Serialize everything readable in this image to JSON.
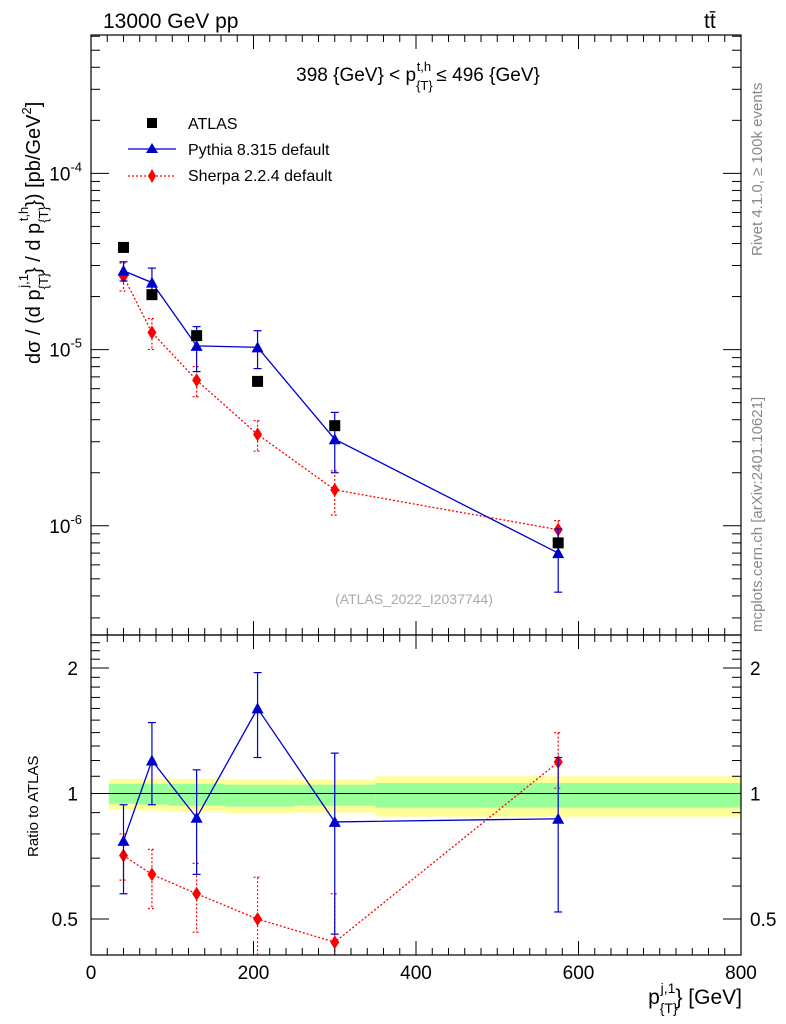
{
  "header": {
    "left": "13000 GeV pp",
    "right": "tt̄"
  },
  "side_labels": {
    "rivet": "Rivet 4.1.0, ≥ 100k events",
    "source": "mcplots.cern.ch [arXiv:2401.10621]"
  },
  "chart_data": [
    {
      "type": "scatter",
      "panel": "main",
      "title": "398 {GeV} < p_{T}^{t,h} ≤ 496 {GeV}",
      "watermark": "(ATLAS_2022_I2037744)",
      "ylabel": "dσ / (d p_{T}^{j,1} / d p_{T}^{t,h}) [pb/GeV^2]",
      "yscale": "log",
      "ylim": [
        2.4e-07,
        0.00061
      ],
      "xlim": [
        0,
        800
      ],
      "legend_position": "top-left",
      "y_ticks": [
        {
          "value": 1e-06,
          "label": "10^-6"
        },
        {
          "value": 1e-05,
          "label": "10^-5"
        },
        {
          "value": 0.0001,
          "label": "10^-4"
        }
      ],
      "series": [
        {
          "name": "ATLAS",
          "style": "data",
          "color": "#000000",
          "x": [
            40,
            75,
            130,
            205,
            300,
            575
          ],
          "y": [
            3.8e-05,
            2.05e-05,
            1.2e-05,
            6.6e-06,
            3.7e-06,
            8e-07
          ]
        },
        {
          "name": "Pythia 8.315 default",
          "style": "line-triangle",
          "color": "#0000cc",
          "x": [
            40,
            75,
            130,
            205,
            300,
            575
          ],
          "y": [
            2.8e-05,
            2.4e-05,
            1.05e-05,
            1.03e-05,
            3.1e-06,
            7e-07
          ],
          "err_lo": [
            2.45e-05,
            1.95e-05,
            7.5e-06,
            7.8e-06,
            2e-06,
            4.2e-07
          ],
          "err_hi": [
            3.15e-05,
            2.9e-05,
            1.35e-05,
            1.28e-05,
            4.4e-06,
            9.6e-07
          ]
        },
        {
          "name": "Sherpa 2.2.4 default",
          "style": "dotted-diamond",
          "color": "#ff0000",
          "x": [
            40,
            75,
            130,
            205,
            300,
            575
          ],
          "y": [
            2.6e-05,
            1.25e-05,
            6.7e-06,
            3.3e-06,
            1.6e-06,
            9.5e-07
          ],
          "err_lo": [
            2.15e-05,
            1e-05,
            5.4e-06,
            2.65e-06,
            1.15e-06,
            8.3e-07
          ],
          "err_hi": [
            3.1e-05,
            1.5e-05,
            8e-06,
            3.95e-06,
            2.05e-06,
            1.07e-06
          ]
        }
      ]
    },
    {
      "type": "scatter",
      "panel": "ratio",
      "ylabel": "Ratio to ATLAS",
      "xlabel": "p_{T}^{j,1} [GeV]",
      "yscale": "log",
      "ylim": [
        0.41,
        2.4
      ],
      "xlim": [
        0,
        800
      ],
      "x_ticks": [
        0,
        200,
        400,
        600,
        800
      ],
      "y_ticks": [
        {
          "value": 0.5,
          "label": "0.5"
        },
        {
          "value": 1,
          "label": "1"
        },
        {
          "value": 2,
          "label": "2"
        }
      ],
      "bands": [
        {
          "x0": 22,
          "x1": 58,
          "y_lo": 0.915,
          "y_hi": 1.085,
          "inner_lo": 0.945,
          "inner_hi": 1.055
        },
        {
          "x0": 58,
          "x1": 95,
          "y_lo": 0.91,
          "y_hi": 1.085,
          "inner_lo": 0.94,
          "inner_hi": 1.055
        },
        {
          "x0": 95,
          "x1": 165,
          "y_lo": 0.905,
          "y_hi": 1.085,
          "inner_lo": 0.935,
          "inner_hi": 1.055
        },
        {
          "x0": 165,
          "x1": 250,
          "y_lo": 0.895,
          "y_hi": 1.08,
          "inner_lo": 0.93,
          "inner_hi": 1.05
        },
        {
          "x0": 250,
          "x1": 350,
          "y_lo": 0.9,
          "y_hi": 1.08,
          "inner_lo": 0.935,
          "inner_hi": 1.05
        },
        {
          "x0": 350,
          "x1": 800,
          "y_lo": 0.88,
          "y_hi": 1.1,
          "inner_lo": 0.925,
          "inner_hi": 1.06
        }
      ],
      "series": [
        {
          "name": "Pythia 8.315 default",
          "style": "line-triangle",
          "color": "#0000cc",
          "x": [
            40,
            75,
            130,
            205,
            300,
            575
          ],
          "y": [
            0.77,
            1.2,
            0.875,
            1.6,
            0.855,
            0.87
          ],
          "err_lo": [
            0.575,
            0.94,
            0.64,
            1.22,
            0.46,
            0.52
          ],
          "err_hi": [
            0.94,
            1.48,
            1.14,
            1.95,
            1.25,
            1.22
          ]
        },
        {
          "name": "Sherpa 2.2.4 default",
          "style": "dotted-diamond",
          "color": "#ff0000",
          "x": [
            40,
            75,
            130,
            205,
            300,
            575
          ],
          "y": [
            0.71,
            0.64,
            0.575,
            0.5,
            0.44,
            1.19
          ],
          "err_lo": [
            0.62,
            0.53,
            0.465,
            0.41,
            0.41,
            1.03
          ],
          "err_hi": [
            0.8,
            0.735,
            0.68,
            0.63,
            0.575,
            1.4
          ]
        }
      ]
    }
  ]
}
